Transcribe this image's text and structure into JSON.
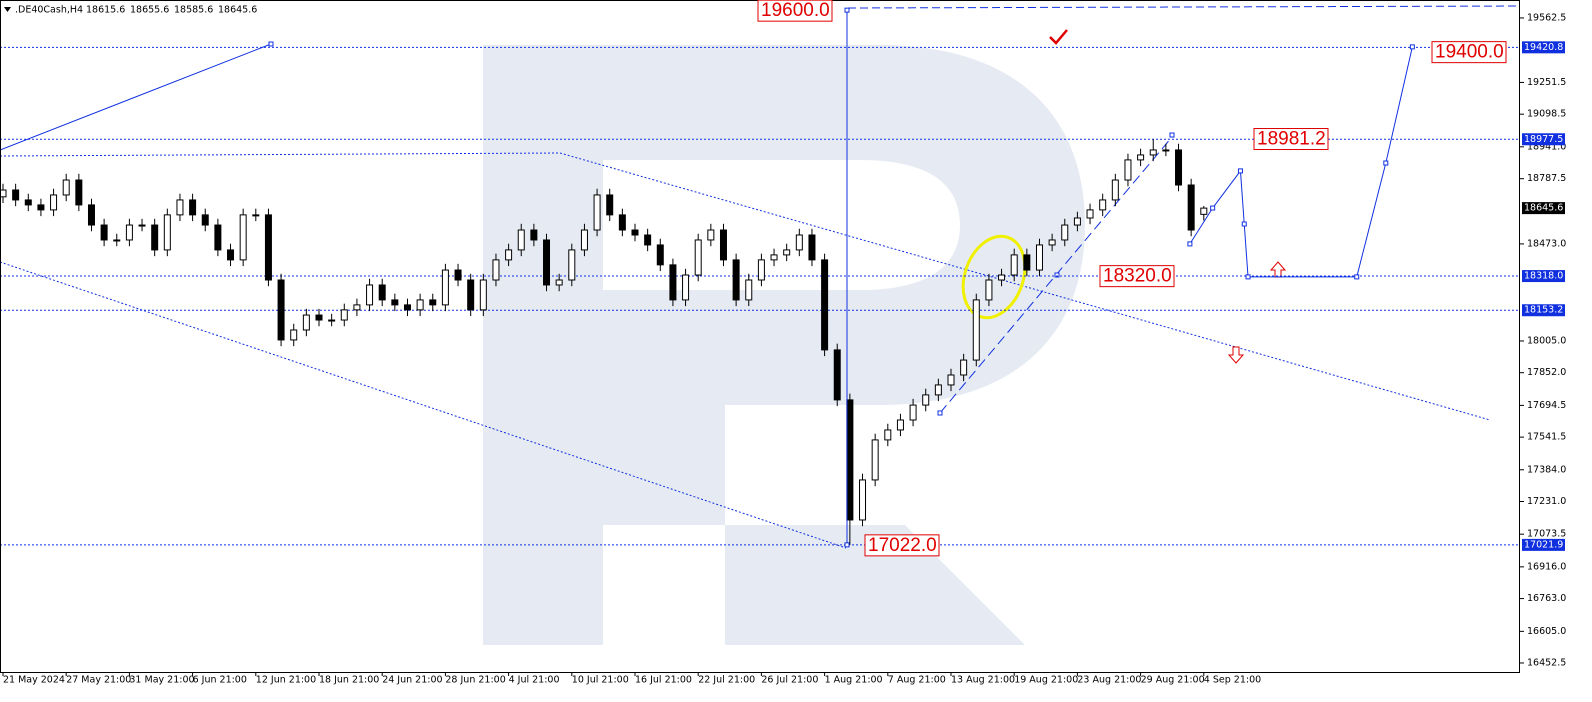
{
  "header": {
    "symbol": ".DE40Cash,H4",
    "ohlc": [
      18615.6,
      18655.6,
      18585.6,
      18645.6
    ]
  },
  "chart_data": {
    "type": "candlestick",
    "categories": [
      "21 May 2024",
      null,
      null,
      null,
      null,
      "27 May 21:00",
      null,
      null,
      null,
      null,
      "31 May 21:00",
      null,
      null,
      null,
      null,
      "6 Jun 21:00",
      null,
      null,
      null,
      null,
      "12 Jun 21:00",
      null,
      null,
      null,
      null,
      "18 Jun 21:00",
      null,
      null,
      null,
      null,
      "24 Jun 21:00",
      null,
      null,
      null,
      null,
      "28 Jun 21:00",
      null,
      null,
      null,
      null,
      "4 Jul 21:00",
      null,
      null,
      null,
      null,
      "10 Jul 21:00",
      null,
      null,
      null,
      null,
      "16 Jul 21:00",
      null,
      null,
      null,
      null,
      "22 Jul 21:00",
      null,
      null,
      null,
      null,
      "26 Jul 21:00",
      null,
      null,
      null,
      null,
      "1 Aug 21:00",
      null,
      null,
      null,
      null,
      "7 Aug 21:00",
      null,
      null,
      null,
      null,
      "13 Aug 21:00",
      null,
      null,
      null,
      null,
      "19 Aug 21:00",
      null,
      null,
      null,
      null,
      "23 Aug 21:00",
      null,
      null,
      null,
      null,
      "29 Aug 21:00",
      null,
      null,
      null,
      null,
      "4 Sep 21:00"
    ],
    "open": [
      18700,
      18733,
      18685,
      18661,
      18637,
      18709,
      18781,
      18661,
      18564,
      18492,
      18492,
      18564,
      18564,
      18444,
      18613,
      18685,
      18613,
      18564,
      18444,
      18396,
      18613,
      18613,
      18299,
      18010,
      18058,
      18130,
      18106,
      18106,
      18155,
      18179,
      18275,
      18203,
      18179,
      18155,
      18203,
      18179,
      18347,
      18299,
      18155,
      18299,
      18396,
      18444,
      18540,
      18492,
      18275,
      18299,
      18444,
      18540,
      18709,
      18613,
      18540,
      18516,
      18468,
      18372,
      18203,
      18323,
      18492,
      18540,
      18396,
      18203,
      18299,
      18396,
      18420,
      18444,
      18516,
      18396,
      17962,
      17721,
      17142,
      17335,
      17528,
      17576,
      17624,
      17696,
      17745,
      17793,
      17841,
      17913,
      18203,
      18299,
      18323,
      18420,
      18347,
      18468,
      18492,
      18564,
      18598,
      18637,
      18685,
      18781,
      18878,
      18902,
      18926,
      18926,
      18757,
      18615.6
    ],
    "high": [
      18763,
      18763,
      18715,
      18691,
      18739,
      18811,
      18811,
      18691,
      18594,
      18522,
      18594,
      18594,
      18594,
      18643,
      18715,
      18715,
      18643,
      18594,
      18474,
      18643,
      18643,
      18643,
      18329,
      18088,
      18160,
      18160,
      18136,
      18185,
      18209,
      18305,
      18305,
      18233,
      18209,
      18233,
      18233,
      18377,
      18377,
      18329,
      18329,
      18426,
      18474,
      18570,
      18570,
      18522,
      18329,
      18474,
      18570,
      18739,
      18739,
      18643,
      18570,
      18546,
      18498,
      18402,
      18353,
      18522,
      18570,
      18570,
      18426,
      18329,
      18426,
      18450,
      18474,
      18546,
      18546,
      18426,
      17992,
      17751,
      17365,
      17558,
      17606,
      17654,
      17726,
      17775,
      17823,
      17871,
      17943,
      18233,
      18329,
      18353,
      18450,
      18450,
      18498,
      18522,
      18594,
      18628,
      18667,
      18715,
      18811,
      18908,
      18932,
      18977,
      18956,
      18956,
      18787,
      18655.6
    ],
    "low": [
      18670,
      18655,
      18631,
      18607,
      18607,
      18679,
      18631,
      18534,
      18462,
      18462,
      18462,
      18534,
      18414,
      18414,
      18583,
      18583,
      18534,
      18414,
      18366,
      18366,
      18583,
      18269,
      17980,
      17980,
      18028,
      18076,
      18076,
      18076,
      18125,
      18149,
      18173,
      18149,
      18125,
      18125,
      18149,
      18149,
      18269,
      18125,
      18125,
      18269,
      18366,
      18414,
      18462,
      18245,
      18245,
      18269,
      18414,
      18510,
      18583,
      18510,
      18486,
      18438,
      18342,
      18173,
      18173,
      18293,
      18462,
      18366,
      18173,
      18173,
      18269,
      18366,
      18390,
      18414,
      18366,
      17932,
      17691,
      17022,
      17112,
      17305,
      17498,
      17546,
      17594,
      17666,
      17715,
      17763,
      17811,
      17883,
      18173,
      18269,
      18293,
      18317,
      18317,
      18438,
      18462,
      18534,
      18568,
      18607,
      18655,
      18751,
      18848,
      18872,
      18896,
      18727,
      18510,
      18585.6
    ],
    "close": [
      18733,
      18685,
      18661,
      18637,
      18709,
      18781,
      18661,
      18564,
      18492,
      18492,
      18564,
      18564,
      18444,
      18613,
      18685,
      18613,
      18564,
      18444,
      18396,
      18613,
      18613,
      18299,
      18010,
      18058,
      18130,
      18106,
      18106,
      18155,
      18179,
      18275,
      18203,
      18179,
      18155,
      18203,
      18179,
      18347,
      18299,
      18155,
      18299,
      18396,
      18444,
      18540,
      18492,
      18275,
      18299,
      18444,
      18540,
      18709,
      18613,
      18540,
      18516,
      18468,
      18372,
      18203,
      18323,
      18492,
      18540,
      18396,
      18203,
      18299,
      18396,
      18420,
      18444,
      18516,
      18396,
      17962,
      17721,
      17142,
      17335,
      17528,
      17576,
      17624,
      17696,
      17745,
      17793,
      17841,
      17913,
      18203,
      18299,
      18323,
      18420,
      18347,
      18468,
      18492,
      18564,
      18598,
      18637,
      18685,
      18781,
      18878,
      18902,
      18926,
      18926,
      18757,
      18540,
      18645.6
    ],
    "ylim": [
      16409,
      19649
    ],
    "yticks": [
      19562.5,
      19251.5,
      19098.5,
      {
        "value": 18941,
        "label": "18941.0"
      },
      18787.5,
      {
        "value": 18473,
        "label": "18473.0"
      },
      {
        "value": 18005,
        "label": "18005.0"
      },
      {
        "value": 17852,
        "label": "17852.0"
      },
      17694.5,
      17541.5,
      {
        "value": 17384,
        "label": "17384.0"
      },
      {
        "value": 17231,
        "label": "17231.0"
      },
      17073.5,
      {
        "value": 16916,
        "label": "16916.0"
      },
      {
        "value": 16763,
        "label": "16763.0"
      },
      {
        "value": 16605,
        "label": "16605.0"
      },
      16452.5
    ],
    "levels": [
      19420.8,
      18977.5,
      {
        "value": 18318,
        "label": "18318.0"
      },
      18153.2,
      17021.9
    ],
    "annotations": [
      {
        "value": 19600,
        "label": "19600.0"
      },
      {
        "value": 19400,
        "label": "19400.0"
      },
      18981.2,
      {
        "value": 18320,
        "label": "18320.0"
      },
      {
        "value": 17022,
        "label": "17022.0"
      }
    ],
    "forecast": {
      "x": [
        93.9,
        95.7,
        97.9,
        98.2,
        98.5,
        107.1,
        109.4,
        111.5
      ],
      "values": [
        18473,
        18646,
        18825,
        18569,
        18314,
        18314,
        18863,
        19423
      ]
    },
    "color": "#1030e0"
  }
}
